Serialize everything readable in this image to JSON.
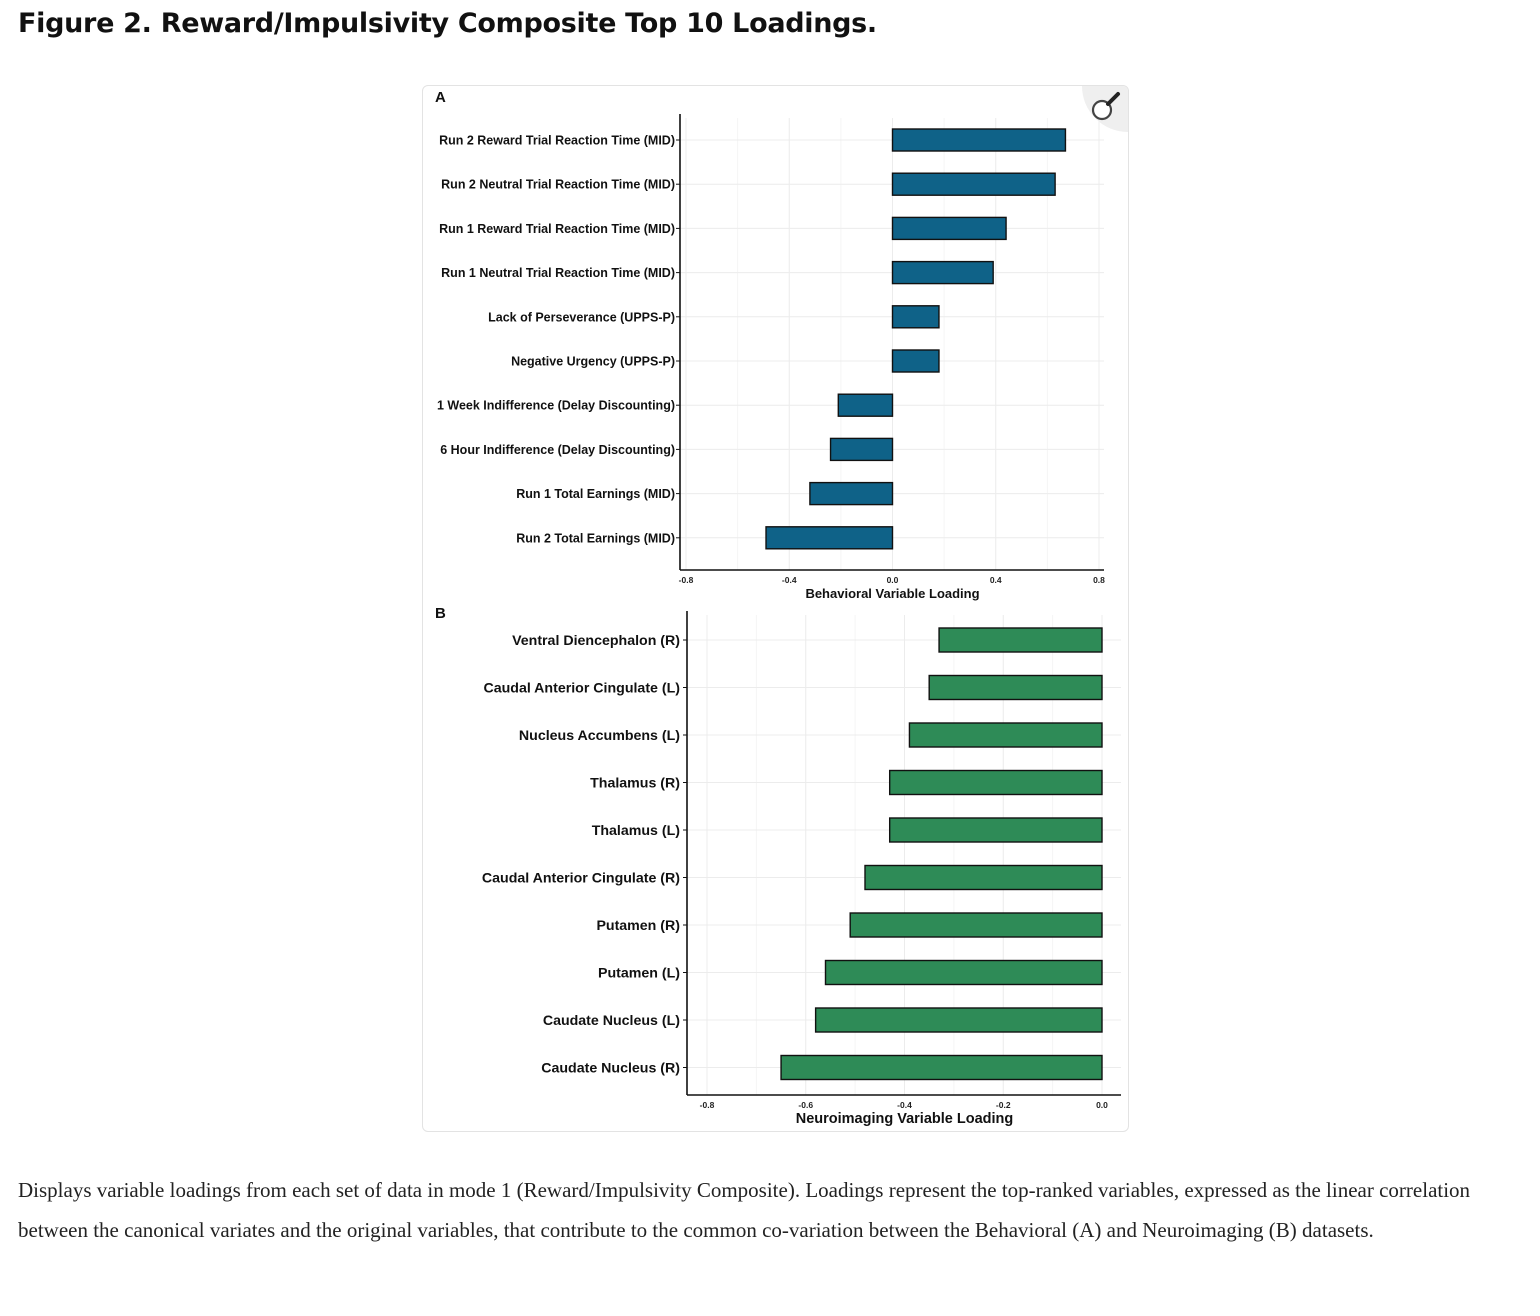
{
  "figure": {
    "title": "Figure 2. Reward/Impulsivity Composite Top 10 Loadings.",
    "caption": "Displays variable loadings from each set of data in mode 1 (Reward/Impulsivity Composite). Loadings represent the top-ranked variables, expressed as the linear correlation between the canonical variates and the original variables, that contribute to the common co-variation between the Behavioral (A) and Neuroimaging (B) datasets.",
    "zoom_icon": "magnifier-icon"
  },
  "colors": {
    "behavioral_bar": "#0f6288",
    "neuro_bar": "#2e8b57",
    "bar_outline": "#111111",
    "grid": "#ececec"
  },
  "chart_data": [
    {
      "panel": "A",
      "type": "bar",
      "orientation": "horizontal",
      "xlabel": "Behavioral Variable Loading",
      "xlim": [
        -0.8,
        0.8
      ],
      "xticks": [
        -0.8,
        -0.4,
        0.0,
        0.4,
        0.8
      ],
      "xtick_labels": [
        "-0.8",
        "-0.4",
        "0.0",
        "0.4",
        "0.8"
      ],
      "categories": [
        "Run 2 Reward Trial Reaction Time (MID)",
        "Run 2 Neutral Trial Reaction Time (MID)",
        "Run 1 Reward Trial Reaction Time (MID)",
        "Run 1 Neutral Trial Reaction Time (MID)",
        "Lack of Perseverance (UPPS-P)",
        "Negative Urgency (UPPS-P)",
        "1 Week Indifference (Delay Discounting)",
        "6 Hour Indifference (Delay Discounting)",
        "Run 1 Total Earnings (MID)",
        "Run 2 Total Earnings (MID)"
      ],
      "values": [
        0.67,
        0.63,
        0.44,
        0.39,
        0.18,
        0.18,
        -0.21,
        -0.24,
        -0.32,
        -0.49
      ],
      "grid": true
    },
    {
      "panel": "B",
      "type": "bar",
      "orientation": "horizontal",
      "xlabel": "Neuroimaging Variable Loading",
      "xlim": [
        -0.8,
        0.0
      ],
      "xticks": [
        -0.8,
        -0.6,
        -0.4,
        -0.2,
        0.0
      ],
      "xtick_labels": [
        "-0.8",
        "-0.6",
        "-0.4",
        "-0.2",
        "0.0"
      ],
      "categories": [
        "Ventral Diencephalon (R)",
        "Caudal Anterior Cingulate (L)",
        "Nucleus Accumbens (L)",
        "Thalamus (R)",
        "Thalamus (L)",
        "Caudal Anterior Cingulate (R)",
        "Putamen (R)",
        "Putamen (L)",
        "Caudate Nucleus (L)",
        "Caudate Nucleus (R)"
      ],
      "values": [
        -0.33,
        -0.35,
        -0.39,
        -0.43,
        -0.43,
        -0.48,
        -0.51,
        -0.56,
        -0.58,
        -0.65
      ],
      "grid": true
    }
  ]
}
